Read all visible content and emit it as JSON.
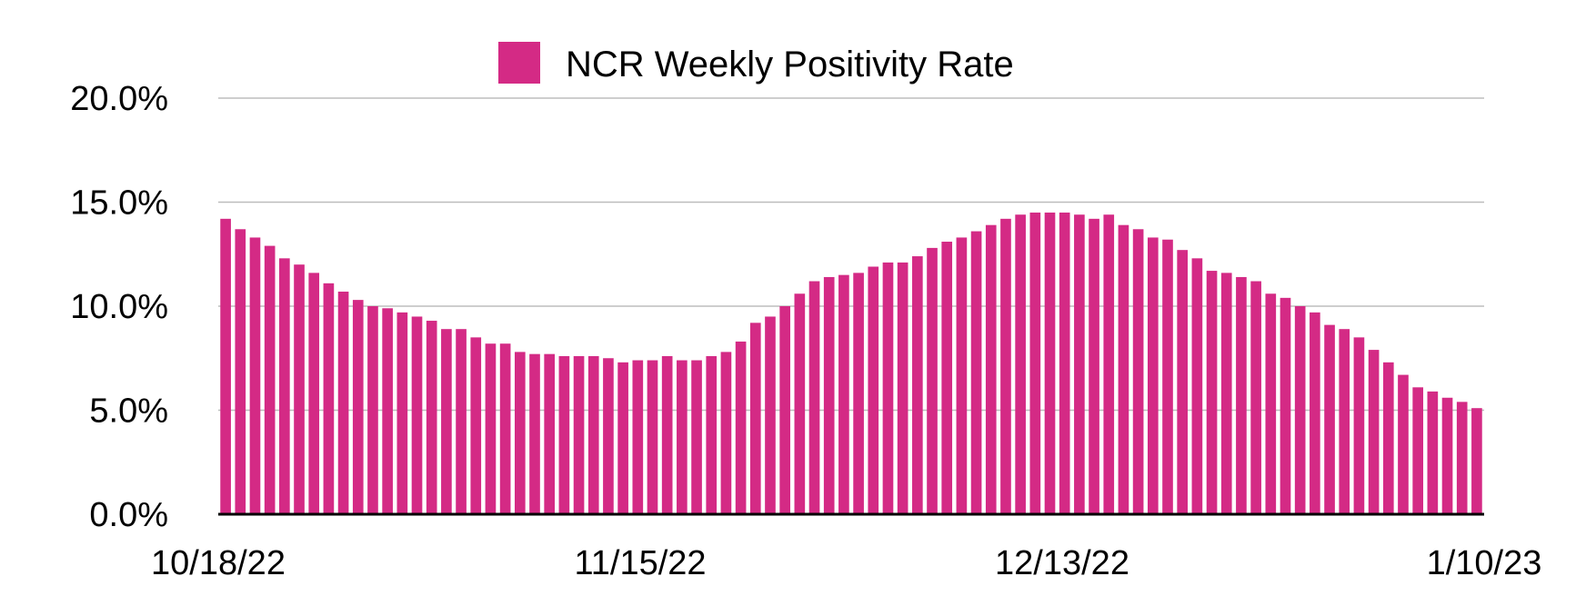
{
  "chart_data": {
    "type": "bar",
    "title": "",
    "xlabel": "",
    "ylabel": "",
    "legend": {
      "position": "top-center",
      "entries": [
        "NCR Weekly Positivity Rate"
      ]
    },
    "ylim": [
      0,
      20
    ],
    "yticks": [
      0,
      5,
      10,
      15,
      20
    ],
    "ytick_labels": [
      "0.0%",
      "5.0%",
      "10.0%",
      "15.0%",
      "20.0%"
    ],
    "xtick_labels": [
      "10/18/22",
      "11/15/22",
      "12/13/22",
      "1/10/23"
    ],
    "grid": true,
    "series": [
      {
        "name": "NCR Weekly Positivity Rate",
        "color": "#d42a85",
        "values": [
          14.2,
          13.7,
          13.3,
          12.9,
          12.3,
          12.0,
          11.6,
          11.1,
          10.7,
          10.3,
          10.0,
          9.9,
          9.7,
          9.5,
          9.3,
          8.9,
          8.9,
          8.5,
          8.2,
          8.2,
          7.8,
          7.7,
          7.7,
          7.6,
          7.6,
          7.6,
          7.5,
          7.3,
          7.4,
          7.4,
          7.6,
          7.4,
          7.4,
          7.6,
          7.8,
          8.3,
          9.2,
          9.5,
          10.0,
          10.6,
          11.2,
          11.4,
          11.5,
          11.6,
          11.9,
          12.1,
          12.1,
          12.4,
          12.8,
          13.1,
          13.3,
          13.6,
          13.9,
          14.2,
          14.4,
          14.5,
          14.5,
          14.5,
          14.4,
          14.2,
          14.4,
          13.9,
          13.7,
          13.3,
          13.2,
          12.7,
          12.3,
          11.7,
          11.6,
          11.4,
          11.2,
          10.6,
          10.4,
          10.0,
          9.7,
          9.1,
          8.9,
          8.5,
          7.9,
          7.3,
          6.7,
          6.1,
          5.9,
          5.6,
          5.4,
          5.1
        ]
      }
    ]
  }
}
